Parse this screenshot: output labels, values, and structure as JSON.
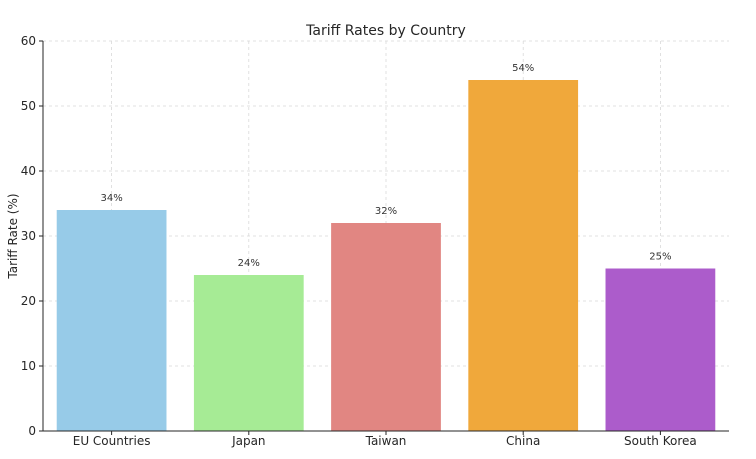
{
  "chart_data": {
    "type": "bar",
    "title": "Tariff Rates by Country",
    "xlabel": "",
    "ylabel": "Tariff Rate (%)",
    "categories": [
      "EU Countries",
      "Japan",
      "Taiwan",
      "China",
      "South Korea"
    ],
    "values": [
      34,
      24,
      32,
      54,
      25
    ],
    "data_labels": [
      "34%",
      "24%",
      "32%",
      "54%",
      "25%"
    ],
    "colors": [
      "#97cbe8",
      "#a6eb95",
      "#e18682",
      "#f0a83b",
      "#ac5ccb"
    ],
    "ylim": [
      0,
      60
    ],
    "yticks": [
      0,
      10,
      20,
      30,
      40,
      50,
      60
    ],
    "grid": true,
    "legend": "none"
  }
}
